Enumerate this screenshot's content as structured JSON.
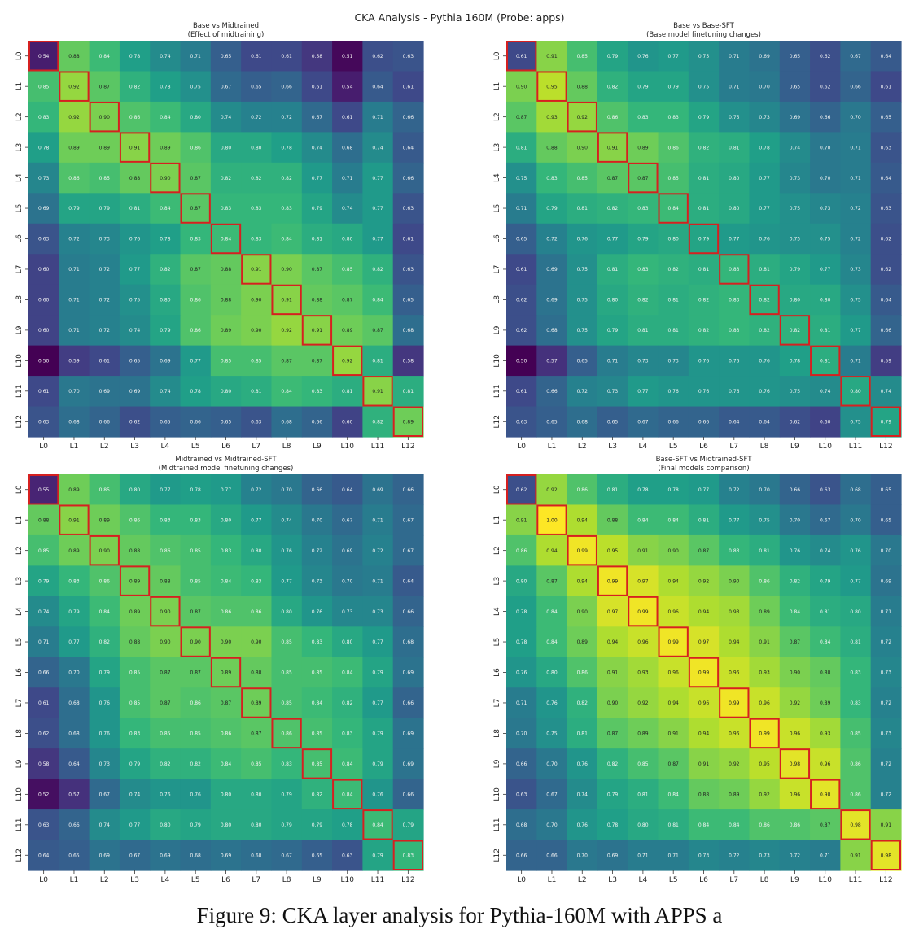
{
  "figure": {
    "suptitle": "CKA Analysis - Pythia 160M (Probe: apps)",
    "caption": "Figure 9: CKA layer analysis for Pythia-160M with APPS a"
  },
  "chart_data": [
    {
      "type": "heatmap",
      "title": "Base vs Midtrained",
      "subtitle": "(Effect of midtraining)",
      "xlabels": [
        "L0",
        "L1",
        "L2",
        "L3",
        "L4",
        "L5",
        "L6",
        "L7",
        "L8",
        "L9",
        "L10",
        "L11",
        "L12"
      ],
      "ylabels": [
        "L0",
        "L1",
        "L2",
        "L3",
        "L4",
        "L5",
        "L6",
        "L7",
        "L8",
        "L9",
        "L10",
        "L11",
        "L12"
      ],
      "colormap": "viridis",
      "vrange": [
        0.5,
        1.0
      ],
      "diagonal_highlight": true,
      "values": [
        [
          0.54,
          0.88,
          0.84,
          0.78,
          0.74,
          0.71,
          0.65,
          0.61,
          0.61,
          0.58,
          0.51,
          0.62,
          0.63
        ],
        [
          0.85,
          0.92,
          0.87,
          0.82,
          0.78,
          0.75,
          0.67,
          0.65,
          0.66,
          0.61,
          0.54,
          0.64,
          0.61
        ],
        [
          0.83,
          0.92,
          0.9,
          0.86,
          0.84,
          0.8,
          0.74,
          0.72,
          0.72,
          0.67,
          0.61,
          0.71,
          0.66
        ],
        [
          0.78,
          0.89,
          0.89,
          0.91,
          0.89,
          0.86,
          0.8,
          0.8,
          0.78,
          0.74,
          0.68,
          0.74,
          0.64
        ],
        [
          0.73,
          0.86,
          0.85,
          0.88,
          0.9,
          0.87,
          0.82,
          0.82,
          0.82,
          0.77,
          0.71,
          0.77,
          0.66
        ],
        [
          0.69,
          0.79,
          0.79,
          0.81,
          0.84,
          0.87,
          0.83,
          0.83,
          0.83,
          0.79,
          0.74,
          0.77,
          0.63
        ],
        [
          0.63,
          0.72,
          0.73,
          0.76,
          0.78,
          0.83,
          0.84,
          0.83,
          0.84,
          0.81,
          0.8,
          0.77,
          0.61
        ],
        [
          0.6,
          0.71,
          0.72,
          0.77,
          0.82,
          0.87,
          0.88,
          0.91,
          0.9,
          0.87,
          0.85,
          0.82,
          0.63
        ],
        [
          0.6,
          0.71,
          0.72,
          0.75,
          0.8,
          0.86,
          0.88,
          0.9,
          0.91,
          0.88,
          0.87,
          0.84,
          0.65
        ],
        [
          0.6,
          0.71,
          0.72,
          0.74,
          0.79,
          0.86,
          0.89,
          0.9,
          0.92,
          0.91,
          0.89,
          0.87,
          0.68
        ],
        [
          0.5,
          0.59,
          0.61,
          0.65,
          0.69,
          0.77,
          0.85,
          0.85,
          0.87,
          0.87,
          0.92,
          0.81,
          0.58
        ],
        [
          0.61,
          0.7,
          0.69,
          0.69,
          0.74,
          0.78,
          0.8,
          0.81,
          0.84,
          0.83,
          0.81,
          0.91,
          0.81
        ],
        [
          0.63,
          0.68,
          0.66,
          0.62,
          0.65,
          0.66,
          0.65,
          0.63,
          0.68,
          0.66,
          0.6,
          0.82,
          0.89
        ]
      ]
    },
    {
      "type": "heatmap",
      "title": "Base vs Base-SFT",
      "subtitle": "(Base model finetuning changes)",
      "xlabels": [
        "L0",
        "L1",
        "L2",
        "L3",
        "L4",
        "L5",
        "L6",
        "L7",
        "L8",
        "L9",
        "L10",
        "L11",
        "L12"
      ],
      "ylabels": [
        "L0",
        "L1",
        "L2",
        "L3",
        "L4",
        "L5",
        "L6",
        "L7",
        "L8",
        "L9",
        "L10",
        "L11",
        "L12"
      ],
      "colormap": "viridis",
      "vrange": [
        0.5,
        1.0
      ],
      "diagonal_highlight": true,
      "values": [
        [
          0.61,
          0.91,
          0.85,
          0.79,
          0.76,
          0.77,
          0.75,
          0.71,
          0.69,
          0.65,
          0.62,
          0.67,
          0.64
        ],
        [
          0.9,
          0.95,
          0.88,
          0.82,
          0.79,
          0.79,
          0.75,
          0.71,
          0.7,
          0.65,
          0.62,
          0.66,
          0.61
        ],
        [
          0.87,
          0.93,
          0.92,
          0.86,
          0.83,
          0.83,
          0.79,
          0.75,
          0.73,
          0.69,
          0.66,
          0.7,
          0.65
        ],
        [
          0.81,
          0.88,
          0.9,
          0.91,
          0.89,
          0.86,
          0.82,
          0.81,
          0.78,
          0.74,
          0.7,
          0.71,
          0.63
        ],
        [
          0.75,
          0.83,
          0.85,
          0.87,
          0.87,
          0.85,
          0.81,
          0.8,
          0.77,
          0.73,
          0.7,
          0.71,
          0.64
        ],
        [
          0.71,
          0.79,
          0.81,
          0.82,
          0.83,
          0.84,
          0.81,
          0.8,
          0.77,
          0.75,
          0.73,
          0.72,
          0.63
        ],
        [
          0.65,
          0.72,
          0.76,
          0.77,
          0.79,
          0.8,
          0.79,
          0.77,
          0.76,
          0.75,
          0.75,
          0.72,
          0.62
        ],
        [
          0.61,
          0.69,
          0.75,
          0.81,
          0.83,
          0.82,
          0.81,
          0.83,
          0.81,
          0.79,
          0.77,
          0.73,
          0.62
        ],
        [
          0.62,
          0.69,
          0.75,
          0.8,
          0.82,
          0.81,
          0.82,
          0.83,
          0.82,
          0.8,
          0.8,
          0.75,
          0.64
        ],
        [
          0.62,
          0.68,
          0.75,
          0.79,
          0.81,
          0.81,
          0.82,
          0.83,
          0.82,
          0.82,
          0.81,
          0.77,
          0.66
        ],
        [
          0.5,
          0.57,
          0.65,
          0.71,
          0.73,
          0.73,
          0.76,
          0.76,
          0.76,
          0.78,
          0.81,
          0.71,
          0.59
        ],
        [
          0.61,
          0.66,
          0.72,
          0.73,
          0.77,
          0.76,
          0.76,
          0.76,
          0.76,
          0.75,
          0.74,
          0.8,
          0.74
        ],
        [
          0.63,
          0.65,
          0.68,
          0.65,
          0.67,
          0.66,
          0.66,
          0.64,
          0.64,
          0.62,
          0.6,
          0.75,
          0.79
        ]
      ]
    },
    {
      "type": "heatmap",
      "title": "Midtrained vs Midtrained-SFT",
      "subtitle": "(Midtrained model finetuning changes)",
      "xlabels": [
        "L0",
        "L1",
        "L2",
        "L3",
        "L4",
        "L5",
        "L6",
        "L7",
        "L8",
        "L9",
        "L10",
        "L11",
        "L12"
      ],
      "ylabels": [
        "L0",
        "L1",
        "L2",
        "L3",
        "L4",
        "L5",
        "L6",
        "L7",
        "L8",
        "L9",
        "L10",
        "L11",
        "L12"
      ],
      "colormap": "viridis",
      "vrange": [
        0.5,
        1.0
      ],
      "diagonal_highlight": true,
      "values": [
        [
          0.55,
          0.89,
          0.85,
          0.8,
          0.77,
          0.78,
          0.77,
          0.72,
          0.7,
          0.66,
          0.64,
          0.69,
          0.66
        ],
        [
          0.88,
          0.91,
          0.89,
          0.86,
          0.83,
          0.83,
          0.8,
          0.77,
          0.74,
          0.7,
          0.67,
          0.71,
          0.67
        ],
        [
          0.85,
          0.89,
          0.9,
          0.88,
          0.86,
          0.85,
          0.83,
          0.8,
          0.76,
          0.72,
          0.69,
          0.72,
          0.67
        ],
        [
          0.79,
          0.83,
          0.86,
          0.89,
          0.88,
          0.85,
          0.84,
          0.83,
          0.77,
          0.73,
          0.7,
          0.71,
          0.64
        ],
        [
          0.74,
          0.79,
          0.84,
          0.89,
          0.9,
          0.87,
          0.86,
          0.86,
          0.8,
          0.76,
          0.73,
          0.73,
          0.66
        ],
        [
          0.71,
          0.77,
          0.82,
          0.88,
          0.9,
          0.9,
          0.9,
          0.9,
          0.85,
          0.83,
          0.8,
          0.77,
          0.68
        ],
        [
          0.66,
          0.7,
          0.79,
          0.85,
          0.87,
          0.87,
          0.89,
          0.88,
          0.85,
          0.85,
          0.84,
          0.79,
          0.69
        ],
        [
          0.61,
          0.68,
          0.76,
          0.85,
          0.87,
          0.86,
          0.87,
          0.89,
          0.85,
          0.84,
          0.82,
          0.77,
          0.66
        ],
        [
          0.62,
          0.68,
          0.76,
          0.83,
          0.85,
          0.85,
          0.86,
          0.87,
          0.86,
          0.85,
          0.83,
          0.79,
          0.69
        ],
        [
          0.58,
          0.64,
          0.73,
          0.79,
          0.82,
          0.82,
          0.84,
          0.85,
          0.83,
          0.85,
          0.84,
          0.79,
          0.69
        ],
        [
          0.52,
          0.57,
          0.67,
          0.74,
          0.76,
          0.76,
          0.8,
          0.8,
          0.79,
          0.82,
          0.84,
          0.76,
          0.66
        ],
        [
          0.63,
          0.66,
          0.74,
          0.77,
          0.8,
          0.79,
          0.8,
          0.8,
          0.79,
          0.79,
          0.78,
          0.84,
          0.79
        ],
        [
          0.64,
          0.65,
          0.69,
          0.67,
          0.69,
          0.68,
          0.69,
          0.68,
          0.67,
          0.65,
          0.63,
          0.79,
          0.83
        ]
      ]
    },
    {
      "type": "heatmap",
      "title": "Base-SFT vs Midtrained-SFT",
      "subtitle": "(Final models comparison)",
      "xlabels": [
        "L0",
        "L1",
        "L2",
        "L3",
        "L4",
        "L5",
        "L6",
        "L7",
        "L8",
        "L9",
        "L10",
        "L11",
        "L12"
      ],
      "ylabels": [
        "L0",
        "L1",
        "L2",
        "L3",
        "L4",
        "L5",
        "L6",
        "L7",
        "L8",
        "L9",
        "L10",
        "L11",
        "L12"
      ],
      "colormap": "viridis",
      "vrange": [
        0.5,
        1.0
      ],
      "diagonal_highlight": true,
      "values": [
        [
          0.62,
          0.92,
          0.86,
          0.81,
          0.78,
          0.78,
          0.77,
          0.72,
          0.7,
          0.66,
          0.63,
          0.68,
          0.65
        ],
        [
          0.91,
          1.0,
          0.94,
          0.88,
          0.84,
          0.84,
          0.81,
          0.77,
          0.75,
          0.7,
          0.67,
          0.7,
          0.65
        ],
        [
          0.86,
          0.94,
          0.99,
          0.95,
          0.91,
          0.9,
          0.87,
          0.83,
          0.81,
          0.76,
          0.74,
          0.76,
          0.7
        ],
        [
          0.8,
          0.87,
          0.94,
          0.99,
          0.97,
          0.94,
          0.92,
          0.9,
          0.86,
          0.82,
          0.79,
          0.77,
          0.69
        ],
        [
          0.78,
          0.84,
          0.9,
          0.97,
          0.99,
          0.96,
          0.94,
          0.93,
          0.89,
          0.84,
          0.81,
          0.8,
          0.71
        ],
        [
          0.78,
          0.84,
          0.89,
          0.94,
          0.96,
          0.99,
          0.97,
          0.94,
          0.91,
          0.87,
          0.84,
          0.81,
          0.72
        ],
        [
          0.76,
          0.8,
          0.86,
          0.91,
          0.93,
          0.96,
          0.99,
          0.96,
          0.93,
          0.9,
          0.88,
          0.83,
          0.73
        ],
        [
          0.71,
          0.76,
          0.82,
          0.9,
          0.92,
          0.94,
          0.96,
          0.99,
          0.96,
          0.92,
          0.89,
          0.83,
          0.72
        ],
        [
          0.7,
          0.75,
          0.81,
          0.87,
          0.89,
          0.91,
          0.94,
          0.96,
          0.99,
          0.96,
          0.93,
          0.85,
          0.73
        ],
        [
          0.66,
          0.7,
          0.76,
          0.82,
          0.85,
          0.87,
          0.91,
          0.92,
          0.95,
          0.98,
          0.96,
          0.86,
          0.72
        ],
        [
          0.63,
          0.67,
          0.74,
          0.79,
          0.81,
          0.84,
          0.88,
          0.89,
          0.92,
          0.96,
          0.98,
          0.86,
          0.72
        ],
        [
          0.68,
          0.7,
          0.76,
          0.78,
          0.8,
          0.81,
          0.84,
          0.84,
          0.86,
          0.86,
          0.87,
          0.98,
          0.91
        ],
        [
          0.66,
          0.66,
          0.7,
          0.69,
          0.71,
          0.71,
          0.73,
          0.72,
          0.73,
          0.72,
          0.71,
          0.91,
          0.98
        ]
      ]
    }
  ]
}
